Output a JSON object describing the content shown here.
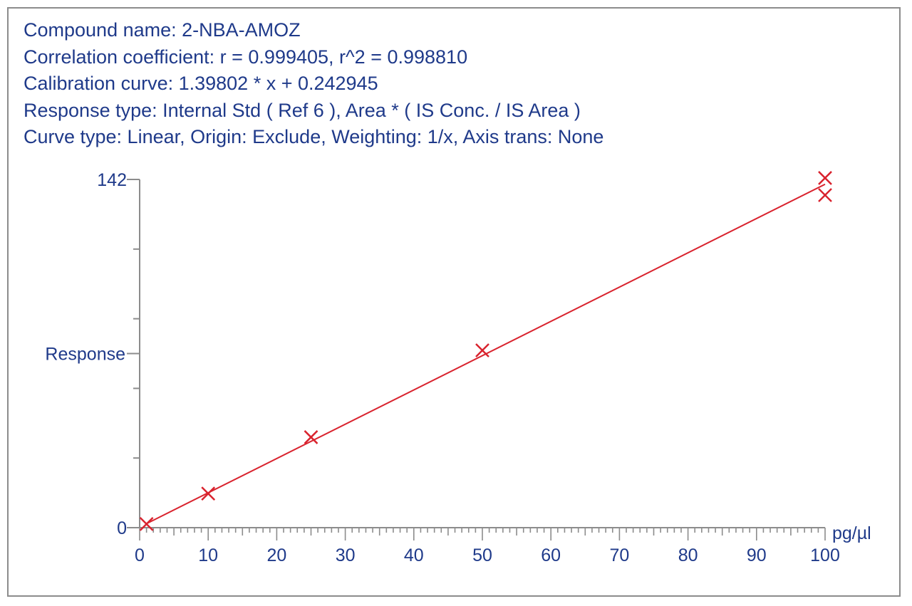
{
  "header": {
    "lines": [
      "Compound name: 2-NBA-AMOZ",
      "Correlation coefficient: r = 0.999405, r^2 = 0.998810",
      "Calibration curve: 1.39802 * x + 0.242945",
      "Response type: Internal Std ( Ref 6 ), Area * ( IS Conc. / IS Area )",
      "Curve type: Linear, Origin: Exclude, Weighting: 1/x, Axis trans: None"
    ]
  },
  "chart_data": {
    "type": "scatter",
    "xlabel": "pg/µl",
    "ylabel": "Response",
    "xlim": [
      0,
      100
    ],
    "ylim": [
      0,
      142
    ],
    "x_ticks": [
      0,
      10,
      20,
      30,
      40,
      50,
      60,
      70,
      80,
      90,
      100
    ],
    "y_tick_labels": [
      "0",
      "142"
    ],
    "series": [
      {
        "x": [
          1,
          10,
          25,
          50,
          100,
          100
        ],
        "y": [
          1.5,
          13.9,
          36.9,
          72.3,
          142.6,
          135.6
        ]
      }
    ],
    "fit_line": {
      "slope": 1.39802,
      "intercept": 0.242945,
      "x_range": [
        1,
        100
      ]
    },
    "grid": false,
    "colors": {
      "axis": "#8c8c8c",
      "text": "#1f3a8a",
      "series": "#d9232e"
    }
  }
}
